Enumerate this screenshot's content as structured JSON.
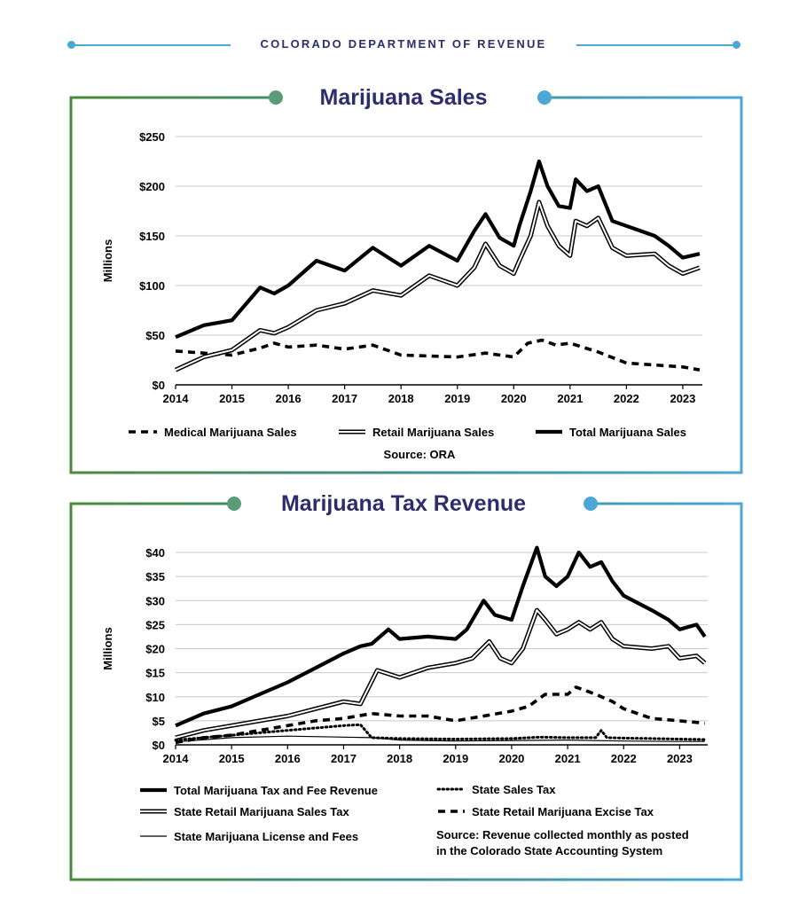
{
  "header": {
    "title": "COLORADO DEPARTMENT OF REVENUE"
  },
  "colors": {
    "accent_blue": "#4ba7d6",
    "accent_green": "#4a8a3a",
    "accent_teal": "#5a9b78",
    "title_navy": "#2e2d6b"
  },
  "chart_data": [
    {
      "type": "line",
      "title": "Marijuana Sales",
      "ylabel": "Millions",
      "xlabel": "",
      "ylim": [
        0,
        250
      ],
      "xlim": [
        2014,
        2023.3
      ],
      "yticks": [
        0,
        50,
        100,
        150,
        200,
        250
      ],
      "ytick_labels": [
        "$0",
        "$50",
        "$100",
        "$150",
        "$200",
        "$250"
      ],
      "xticks": [
        2014,
        2015,
        2016,
        2017,
        2018,
        2019,
        2020,
        2021,
        2022,
        2023
      ],
      "xtick_labels": [
        "2014",
        "2015",
        "2016",
        "2017",
        "2018",
        "2019",
        "2020",
        "2021",
        "2022",
        "2023"
      ],
      "grid": true,
      "legend_position": "bottom",
      "source": "Source: ORA",
      "series": [
        {
          "name": "Medical Marijuana Sales",
          "style": "dashed",
          "x": [
            2014,
            2014.5,
            2015,
            2015.5,
            2015.75,
            2016,
            2016.5,
            2017,
            2017.5,
            2018,
            2018.5,
            2019,
            2019.5,
            2020,
            2020.25,
            2020.5,
            2020.75,
            2021,
            2021.5,
            2022,
            2022.5,
            2023,
            2023.3
          ],
          "values": [
            34,
            32,
            30,
            37,
            42,
            38,
            40,
            36,
            40,
            30,
            29,
            28,
            32,
            28,
            42,
            45,
            40,
            42,
            33,
            22,
            20,
            18,
            15
          ]
        },
        {
          "name": "Retail Marijuana Sales",
          "style": "double",
          "x": [
            2014,
            2014.5,
            2015,
            2015.5,
            2015.75,
            2016,
            2016.5,
            2017,
            2017.5,
            2018,
            2018.5,
            2019,
            2019.3,
            2019.5,
            2019.75,
            2020,
            2020.1,
            2020.3,
            2020.45,
            2020.6,
            2020.8,
            2021,
            2021.1,
            2021.3,
            2021.5,
            2021.75,
            2022,
            2022.5,
            2022.75,
            2023,
            2023.3
          ],
          "values": [
            15,
            28,
            35,
            55,
            52,
            58,
            75,
            82,
            95,
            90,
            110,
            100,
            118,
            142,
            120,
            112,
            125,
            150,
            184,
            160,
            140,
            130,
            165,
            160,
            168,
            138,
            130,
            132,
            120,
            112,
            118
          ]
        },
        {
          "name": "Total Marijuana Sales",
          "style": "solid",
          "x": [
            2014,
            2014.5,
            2015,
            2015.5,
            2015.75,
            2016,
            2016.5,
            2017,
            2017.5,
            2018,
            2018.5,
            2019,
            2019.3,
            2019.5,
            2019.75,
            2020,
            2020.1,
            2020.3,
            2020.45,
            2020.6,
            2020.8,
            2021,
            2021.1,
            2021.3,
            2021.5,
            2021.75,
            2022,
            2022.5,
            2022.75,
            2023,
            2023.3
          ],
          "values": [
            48,
            60,
            65,
            98,
            92,
            100,
            125,
            115,
            138,
            120,
            140,
            125,
            155,
            172,
            148,
            140,
            160,
            195,
            225,
            200,
            180,
            178,
            207,
            195,
            200,
            165,
            160,
            150,
            140,
            128,
            132
          ]
        }
      ]
    },
    {
      "type": "line",
      "title": "Marijuana Tax Revenue",
      "ylabel": "Millions",
      "xlabel": "",
      "ylim": [
        0,
        40
      ],
      "xlim": [
        2014,
        2023.5
      ],
      "yticks": [
        0,
        5,
        10,
        15,
        20,
        25,
        30,
        35,
        40
      ],
      "ytick_labels": [
        "$0",
        "$5",
        "$10",
        "$15",
        "$20",
        "$25",
        "$30",
        "$35",
        "$40"
      ],
      "xticks": [
        2014,
        2015,
        2016,
        2017,
        2018,
        2019,
        2020,
        2021,
        2022,
        2023
      ],
      "xtick_labels": [
        "2014",
        "2015",
        "2016",
        "2017",
        "2018",
        "2019",
        "2020",
        "2021",
        "2022",
        "2023"
      ],
      "grid": true,
      "legend_position": "bottom",
      "source": "Source: Revenue collected monthly as posted in the Colorado State Accounting System",
      "source_lines": [
        "Source: Revenue collected monthly as posted",
        "in the Colorado State Accounting System"
      ],
      "series": [
        {
          "name": "Total Marijuana Tax and Fee Revenue",
          "style": "solid",
          "x": [
            2014,
            2014.5,
            2015,
            2015.5,
            2016,
            2016.5,
            2017,
            2017.3,
            2017.5,
            2017.8,
            2018,
            2018.5,
            2019,
            2019.2,
            2019.5,
            2019.7,
            2020,
            2020.2,
            2020.45,
            2020.6,
            2020.8,
            2021,
            2021.2,
            2021.4,
            2021.6,
            2021.8,
            2022,
            2022.5,
            2022.8,
            2023,
            2023.3,
            2023.45
          ],
          "values": [
            4,
            6.5,
            8,
            10.5,
            13,
            16,
            19,
            20.5,
            21,
            24,
            22,
            22.5,
            22,
            24,
            30,
            27,
            26,
            33,
            41,
            35,
            33,
            35,
            40,
            37,
            38,
            34,
            31,
            28,
            26,
            24,
            25,
            22.5
          ]
        },
        {
          "name": "State Retail Marijuana Sales Tax",
          "style": "double",
          "x": [
            2014,
            2014.5,
            2015,
            2015.5,
            2016,
            2016.5,
            2017,
            2017.3,
            2017.6,
            2018,
            2018.5,
            2019,
            2019.3,
            2019.6,
            2019.8,
            2020,
            2020.2,
            2020.45,
            2020.6,
            2020.8,
            2021,
            2021.2,
            2021.4,
            2021.6,
            2021.8,
            2022,
            2022.5,
            2022.8,
            2023,
            2023.3,
            2023.45
          ],
          "values": [
            1.5,
            3,
            4,
            5,
            6,
            7.5,
            9,
            8.5,
            15.5,
            14,
            16,
            17,
            18,
            21.5,
            18,
            17,
            20,
            28,
            26,
            23,
            24,
            25.5,
            24,
            25.5,
            22,
            20.5,
            20,
            20.5,
            18,
            18.5,
            17
          ]
        },
        {
          "name": "State Retail Marijuana Excise Tax",
          "style": "dashed",
          "x": [
            2014,
            2014.5,
            2015,
            2015.5,
            2016,
            2016.5,
            2017,
            2017.5,
            2018,
            2018.5,
            2019,
            2019.5,
            2020,
            2020.3,
            2020.6,
            2021,
            2021.15,
            2021.5,
            2021.8,
            2022,
            2022.5,
            2023,
            2023.45
          ],
          "values": [
            0.5,
            1.5,
            2,
            3,
            4,
            5,
            5.5,
            6.5,
            6,
            6,
            5,
            6,
            7,
            8,
            10.5,
            10.5,
            12,
            10.5,
            9,
            7.5,
            5.5,
            5,
            4.5
          ]
        },
        {
          "name": "State Sales Tax",
          "style": "dotted",
          "x": [
            2014,
            2014.5,
            2015,
            2015.5,
            2016,
            2016.5,
            2017,
            2017.3,
            2017.5,
            2018,
            2019,
            2020,
            2020.5,
            2021,
            2021.5,
            2021.6,
            2021.7,
            2022,
            2022.5,
            2023,
            2023.45
          ],
          "values": [
            1,
            1.5,
            2,
            2.5,
            3,
            3.5,
            4,
            4.2,
            1.5,
            1.3,
            1.2,
            1.3,
            1.6,
            1.5,
            1.5,
            3,
            1.5,
            1.4,
            1.3,
            1.2,
            1.1
          ]
        },
        {
          "name": "State Marijuana License and Fees",
          "style": "thin",
          "x": [
            2014,
            2015,
            2016,
            2017,
            2017.5,
            2018,
            2019,
            2020,
            2021,
            2022,
            2023,
            2023.45
          ],
          "values": [
            0.6,
            1.5,
            1.8,
            1.6,
            1.5,
            1,
            0.8,
            0.9,
            1,
            0.8,
            0.7,
            0.7
          ]
        }
      ]
    }
  ]
}
